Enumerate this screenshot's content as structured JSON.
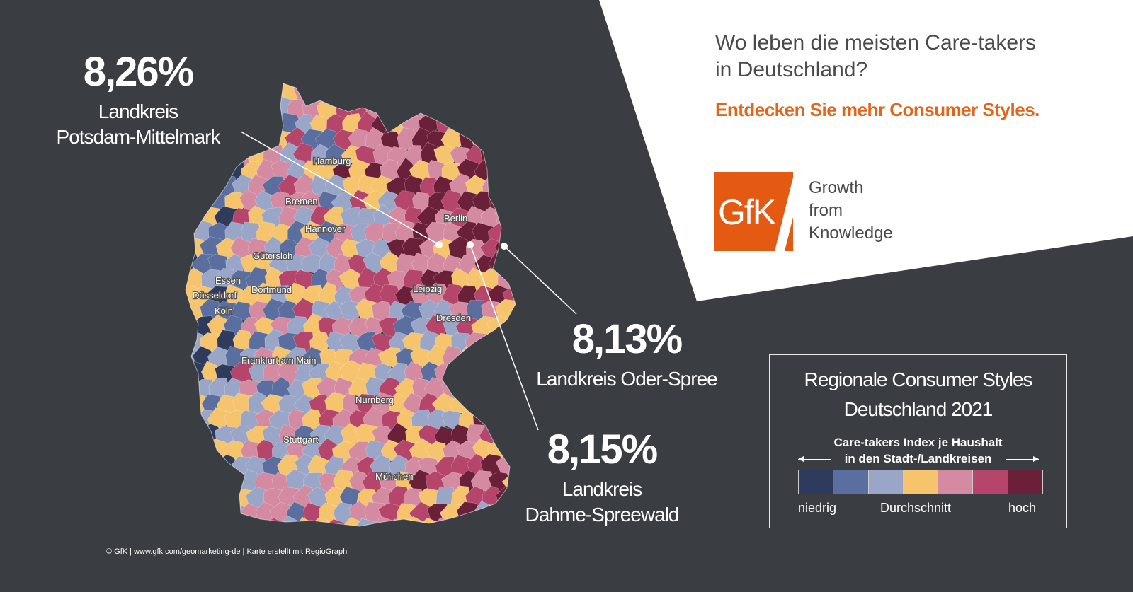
{
  "header": {
    "headline_line1": "Wo leben die meisten Care-takers",
    "headline_line2": "in Deutschland?",
    "cta": "Entdecken Sie mehr Consumer Styles."
  },
  "logo": {
    "mark": "GfK",
    "tagline_line1": "Growth",
    "tagline_line2": "from",
    "tagline_line3": "Knowledge",
    "brand_color": "#e55a12"
  },
  "callouts": [
    {
      "value": "8,26%",
      "label_line1": "Landkreis",
      "label_line2": "Potsdam-Mittelmark"
    },
    {
      "value": "8,13%",
      "label_line1": "Landkreis Oder-Spree",
      "label_line2": ""
    },
    {
      "value": "8,15%",
      "label_line1": "Landkreis",
      "label_line2": "Dahme-Spreewald"
    }
  ],
  "cities": [
    "Hamburg",
    "Bremen",
    "Hannover",
    "Berlin",
    "Gütersloh",
    "Essen",
    "Dortmund",
    "Düsseldorf",
    "Köln",
    "Leipzig",
    "Dresden",
    "Frankfurt am Main",
    "Nürnberg",
    "Stuttgart",
    "München"
  ],
  "legend": {
    "title_line1": "Regionale Consumer Styles",
    "title_line2": "Deutschland 2021",
    "subtitle_line1": "Care-takers Index je Haushalt",
    "subtitle_line2": "in den Stadt-/Landkreisen",
    "low": "niedrig",
    "mid": "Durchschnitt",
    "high": "hoch",
    "colors": [
      "#2f3b5c",
      "#5a6fa0",
      "#9aa6c8",
      "#f5c46d",
      "#d48aa0",
      "#b5456a",
      "#6a2038"
    ]
  },
  "footer": "© GfK | www.gfk.com/geomarketing-de  | Karte erstellt mit RegioGraph"
}
